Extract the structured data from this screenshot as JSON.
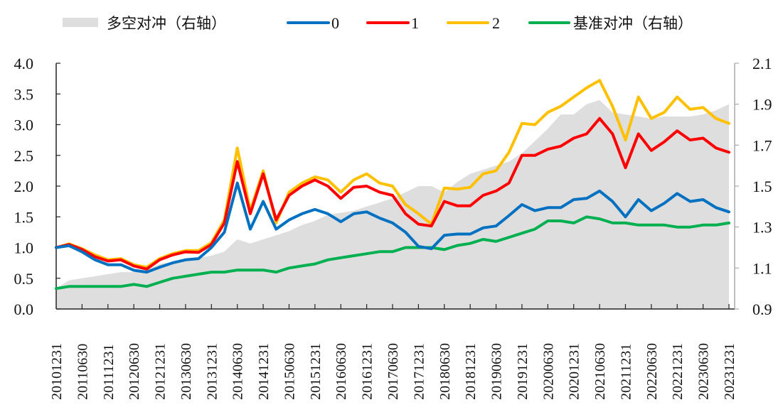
{
  "chart_data": {
    "type": "line",
    "title": "",
    "xlabel": "",
    "ylabel": "",
    "legend_position": "top",
    "legend": [
      {
        "key": "area",
        "label": "多空对冲（右轴）",
        "kind": "area",
        "color": "#DEDEDE"
      },
      {
        "key": "s0",
        "label": "0",
        "kind": "line",
        "color": "#0070C0"
      },
      {
        "key": "s1",
        "label": "1",
        "kind": "line",
        "color": "#FF0000"
      },
      {
        "key": "s2",
        "label": "2",
        "kind": "line",
        "color": "#FFC000"
      },
      {
        "key": "bench",
        "label": "基准对冲（右轴）",
        "kind": "line",
        "color": "#00B050"
      }
    ],
    "left_axis": {
      "min": 0.0,
      "max": 4.0,
      "ticks": [
        "0.0",
        "0.5",
        "1.0",
        "1.5",
        "2.0",
        "2.5",
        "3.0",
        "3.5",
        "4.0"
      ]
    },
    "right_axis": {
      "min": 0.9,
      "max": 2.1,
      "ticks": [
        "0.9",
        "1.1",
        "1.3",
        "1.5",
        "1.7",
        "1.9",
        "2.1"
      ]
    },
    "x_tick_labels": [
      "20101231",
      "20110630",
      "20111231",
      "20120630",
      "20121231",
      "20130630",
      "20131231",
      "20140630",
      "20141231",
      "20150630",
      "20151231",
      "20160630",
      "20161231",
      "20170630",
      "20171231",
      "20180630",
      "20181231",
      "20190630",
      "20191231",
      "20200630",
      "20201231",
      "20210630",
      "20211231",
      "20220630",
      "20221231",
      "20230630",
      "20231231"
    ],
    "x_months": [
      0,
      3,
      6,
      9,
      12,
      15,
      18,
      21,
      24,
      27,
      30,
      33,
      36,
      39,
      42,
      45,
      48,
      51,
      54,
      57,
      60,
      63,
      66,
      69,
      72,
      75,
      78,
      81,
      84,
      87,
      90,
      93,
      96,
      99,
      102,
      105,
      108,
      111,
      114,
      117,
      120,
      123,
      126,
      129,
      132,
      135,
      138,
      141,
      144,
      147,
      150,
      153,
      156
    ],
    "series": [
      {
        "name": "0",
        "axis": "left",
        "values": [
          1.0,
          1.03,
          0.93,
          0.8,
          0.72,
          0.72,
          0.63,
          0.6,
          0.68,
          0.75,
          0.8,
          0.82,
          1.0,
          1.25,
          2.05,
          1.3,
          1.75,
          1.3,
          1.45,
          1.55,
          1.62,
          1.55,
          1.42,
          1.55,
          1.58,
          1.48,
          1.4,
          1.25,
          1.02,
          0.98,
          1.2,
          1.22,
          1.22,
          1.32,
          1.35,
          1.52,
          1.7,
          1.6,
          1.65,
          1.65,
          1.78,
          1.8,
          1.92,
          1.75,
          1.5,
          1.78,
          1.6,
          1.72,
          1.88,
          1.75,
          1.78,
          1.65,
          1.58
        ]
      },
      {
        "name": "1",
        "axis": "left",
        "values": [
          1.0,
          1.05,
          0.97,
          0.85,
          0.78,
          0.8,
          0.7,
          0.65,
          0.8,
          0.88,
          0.93,
          0.92,
          1.05,
          1.4,
          2.4,
          1.55,
          2.2,
          1.45,
          1.85,
          2.0,
          2.1,
          2.0,
          1.8,
          1.98,
          2.0,
          1.9,
          1.85,
          1.55,
          1.38,
          1.35,
          1.75,
          1.68,
          1.68,
          1.85,
          1.92,
          2.05,
          2.5,
          2.5,
          2.6,
          2.65,
          2.78,
          2.85,
          3.1,
          2.85,
          2.3,
          2.85,
          2.58,
          2.72,
          2.9,
          2.75,
          2.78,
          2.62,
          2.55
        ]
      },
      {
        "name": "2",
        "axis": "left",
        "values": [
          1.0,
          1.06,
          0.98,
          0.88,
          0.8,
          0.82,
          0.72,
          0.68,
          0.82,
          0.9,
          0.95,
          0.95,
          1.08,
          1.45,
          2.62,
          1.6,
          2.25,
          1.4,
          1.9,
          2.05,
          2.15,
          2.1,
          1.9,
          2.1,
          2.2,
          2.05,
          2.0,
          1.7,
          1.55,
          1.38,
          1.97,
          1.95,
          1.98,
          2.2,
          2.25,
          2.55,
          3.02,
          3.0,
          3.2,
          3.3,
          3.45,
          3.6,
          3.72,
          3.3,
          2.75,
          3.45,
          3.1,
          3.2,
          3.45,
          3.25,
          3.28,
          3.1,
          3.02
        ]
      },
      {
        "name": "基准对冲（右轴）",
        "axis": "right",
        "values": [
          1.0,
          1.01,
          1.01,
          1.01,
          1.01,
          1.01,
          1.02,
          1.01,
          1.03,
          1.05,
          1.06,
          1.07,
          1.08,
          1.08,
          1.09,
          1.09,
          1.09,
          1.08,
          1.1,
          1.11,
          1.12,
          1.14,
          1.15,
          1.16,
          1.17,
          1.18,
          1.18,
          1.2,
          1.2,
          1.2,
          1.19,
          1.21,
          1.22,
          1.24,
          1.23,
          1.25,
          1.27,
          1.29,
          1.33,
          1.33,
          1.32,
          1.35,
          1.34,
          1.32,
          1.32,
          1.31,
          1.31,
          1.31,
          1.3,
          1.3,
          1.31,
          1.31,
          1.32
        ]
      },
      {
        "name": "多空对冲（右轴）",
        "axis": "right",
        "values": [
          1.0,
          1.04,
          1.05,
          1.06,
          1.07,
          1.08,
          1.08,
          1.09,
          1.12,
          1.13,
          1.14,
          1.15,
          1.16,
          1.18,
          1.24,
          1.22,
          1.24,
          1.26,
          1.28,
          1.31,
          1.33,
          1.36,
          1.37,
          1.38,
          1.4,
          1.42,
          1.44,
          1.47,
          1.5,
          1.5,
          1.47,
          1.52,
          1.56,
          1.58,
          1.6,
          1.62,
          1.66,
          1.72,
          1.78,
          1.85,
          1.85,
          1.9,
          1.92,
          1.86,
          1.85,
          1.84,
          1.83,
          1.84,
          1.84,
          1.84,
          1.85,
          1.87,
          1.9
        ]
      }
    ]
  }
}
